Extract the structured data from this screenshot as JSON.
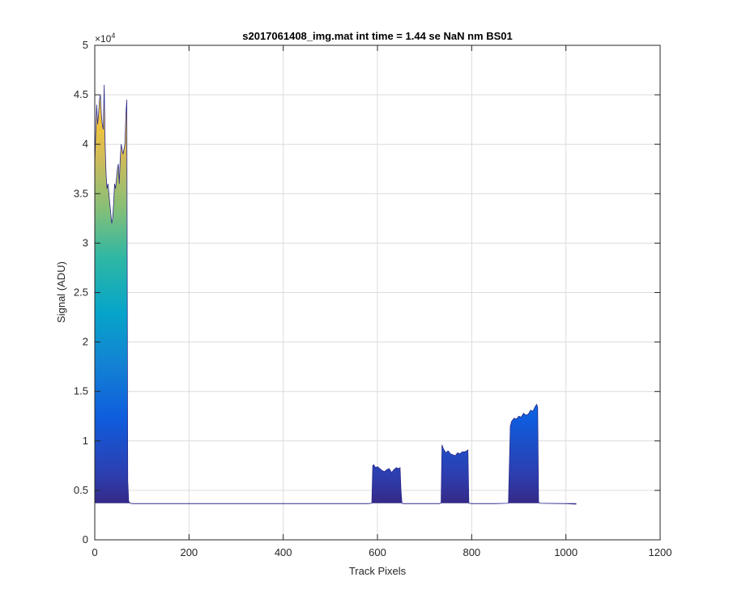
{
  "chart_data": {
    "type": "area",
    "title": "s2017061408_img.mat int time = 1.44 se  NaN nm BS01",
    "xlabel": "Track Pixels",
    "ylabel": "Signal (ADU)",
    "y_exponent_label": "×10",
    "y_exponent_power": "4",
    "xlim": [
      0,
      1200
    ],
    "ylim": [
      0,
      50000
    ],
    "x_ticks": [
      0,
      200,
      400,
      600,
      800,
      1000,
      1200
    ],
    "x_tick_labels": [
      "0",
      "200",
      "400",
      "600",
      "800",
      "1000",
      "1200"
    ],
    "y_ticks": [
      0,
      5000,
      10000,
      15000,
      20000,
      25000,
      30000,
      35000,
      40000,
      45000,
      50000
    ],
    "y_tick_labels": [
      "0",
      "0.5",
      "1",
      "1.5",
      "2",
      "2.5",
      "3",
      "3.5",
      "4",
      "4.5",
      "5"
    ],
    "grid": true,
    "baseline": 3700,
    "colormap": "parula",
    "series": [
      {
        "x": [
          0,
          2,
          4,
          6,
          8,
          10,
          12,
          14,
          16,
          18,
          20,
          22,
          24,
          26,
          28,
          30,
          32,
          34,
          36,
          38,
          40,
          42,
          44,
          46,
          48,
          50,
          52,
          54,
          56,
          58,
          60,
          62,
          64,
          66,
          68,
          70,
          72,
          75,
          80,
          100,
          200,
          300,
          400,
          500,
          580,
          588,
          590,
          592,
          596,
          600,
          605,
          610,
          615,
          620,
          625,
          630,
          635,
          640,
          645,
          648,
          650,
          652,
          655,
          700,
          730,
          735,
          737,
          740,
          745,
          750,
          755,
          760,
          765,
          770,
          775,
          780,
          785,
          790,
          792,
          794,
          800,
          850,
          878,
          882,
          885,
          890,
          895,
          900,
          905,
          910,
          915,
          920,
          925,
          930,
          935,
          938,
          940,
          942,
          945,
          1000,
          1022
        ],
        "y": [
          38000,
          41000,
          44000,
          42000,
          43000,
          44500,
          45000,
          43000,
          42000,
          41500,
          46000,
          40000,
          37000,
          35500,
          36000,
          35000,
          34000,
          33000,
          32000,
          32500,
          34000,
          36000,
          35500,
          36500,
          37500,
          38000,
          36000,
          38500,
          40000,
          39500,
          39000,
          39500,
          40000,
          43000,
          44500,
          6000,
          3900,
          3700,
          3650,
          3650,
          3650,
          3650,
          3650,
          3650,
          3650,
          3700,
          7500,
          7600,
          7300,
          7400,
          7200,
          7000,
          6900,
          7100,
          7200,
          6800,
          7100,
          7300,
          7200,
          7300,
          5000,
          3700,
          3650,
          3650,
          3650,
          3700,
          9600,
          9200,
          8800,
          9000,
          8700,
          8600,
          8500,
          8800,
          8700,
          8900,
          8900,
          9000,
          9100,
          3700,
          3650,
          3650,
          3700,
          11500,
          12000,
          12300,
          12200,
          12500,
          12400,
          12800,
          12600,
          12700,
          13100,
          13000,
          13500,
          13700,
          13400,
          3800,
          3700,
          3650,
          3600
        ]
      }
    ]
  }
}
